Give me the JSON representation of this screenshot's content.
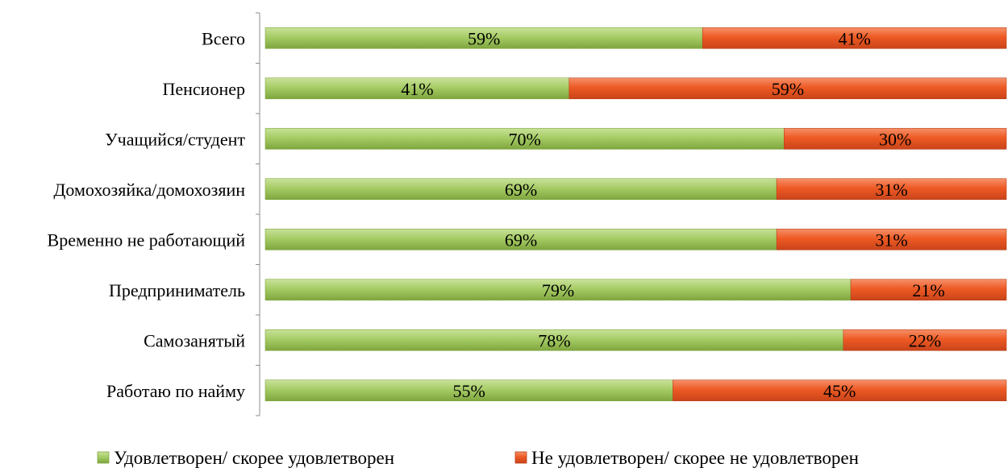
{
  "chart_data": {
    "type": "bar",
    "orientation": "horizontal",
    "stacked": "percent",
    "categories": [
      "Всего",
      "Пенсионер",
      "Учащийся/студент",
      "Домохозяйка/домохозяин",
      "Временно не работающий",
      "Предприниматель",
      "Самозанятый",
      "Работаю по найму"
    ],
    "series": [
      {
        "name": "Удовлетворен/ скорее удовлетворен",
        "color": "#9BC15A",
        "values": [
          59,
          41,
          70,
          69,
          69,
          79,
          78,
          55
        ],
        "labels": [
          "59%",
          "41%",
          "70%",
          "69%",
          "69%",
          "79%",
          "78%",
          "55%"
        ]
      },
      {
        "name": "Не удовлетворен/ скорее не удовлетворен",
        "color": "#EE5A24",
        "values": [
          41,
          59,
          30,
          31,
          31,
          21,
          22,
          45
        ],
        "labels": [
          "41%",
          "59%",
          "30%",
          "31%",
          "31%",
          "21%",
          "22%",
          "45%"
        ]
      }
    ],
    "xlim": [
      0,
      100
    ],
    "grid": false,
    "legend_position": "bottom"
  }
}
